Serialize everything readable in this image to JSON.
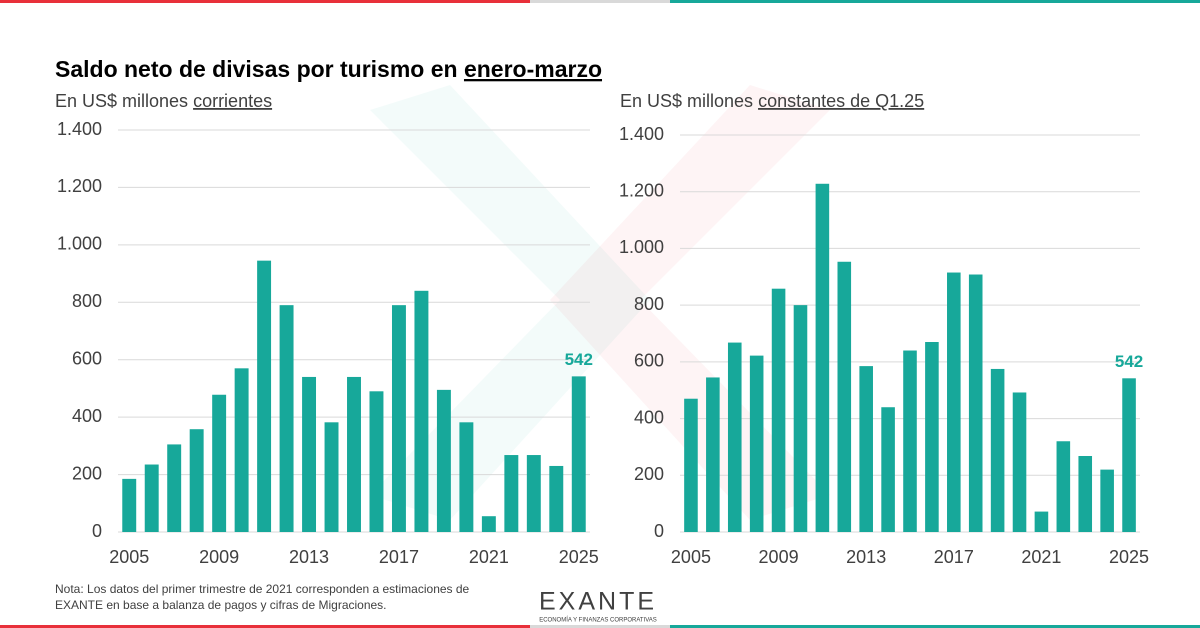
{
  "title": {
    "text": "Saldo neto de divisas por turismo en ",
    "underlined": "enero-marzo"
  },
  "note": [
    "Nota: Los datos del primer trimestre de 2021 corresponden a estimaciones de",
    "EXANTE en base a balanza de pagos y cifras de Migraciones."
  ],
  "logo": {
    "name": "EXANTE",
    "tagline": "ECONOMÍA Y FINANZAS CORPORATIVAS"
  },
  "chart_data": [
    {
      "type": "bar",
      "subtitle": {
        "text": "En US$ millones ",
        "underlined": "corrientes"
      },
      "categories": [
        "2005",
        null,
        null,
        null,
        "2009",
        null,
        null,
        null,
        "2013",
        null,
        null,
        null,
        "2017",
        null,
        null,
        null,
        "2021",
        null,
        null,
        null,
        "2025"
      ],
      "values": [
        185,
        235,
        305,
        358,
        478,
        570,
        945,
        790,
        540,
        382,
        540,
        490,
        790,
        840,
        495,
        382,
        55,
        268,
        268,
        230,
        542
      ],
      "value_labels": [
        null,
        null,
        null,
        null,
        null,
        null,
        null,
        null,
        null,
        null,
        null,
        null,
        null,
        null,
        null,
        null,
        null,
        null,
        null,
        null,
        "542"
      ],
      "color": "#17a89a",
      "ylim": [
        0,
        1400
      ],
      "yticks": [
        0,
        200,
        400,
        600,
        800,
        {
          "value": 1000,
          "label": "1.000"
        },
        {
          "value": 1200,
          "label": "1.200"
        },
        {
          "value": 1400,
          "label": "1.400"
        }
      ],
      "grid": true
    },
    {
      "type": "bar",
      "subtitle": {
        "text": "En US$ millones ",
        "underlined": "constantes de Q1.25"
      },
      "categories": [
        "2005",
        null,
        null,
        null,
        "2009",
        null,
        null,
        null,
        "2013",
        null,
        null,
        null,
        "2017",
        null,
        null,
        null,
        "2021",
        null,
        null,
        null,
        "2025"
      ],
      "values": [
        470,
        545,
        668,
        622,
        858,
        800,
        1228,
        953,
        585,
        440,
        640,
        670,
        915,
        908,
        575,
        492,
        72,
        320,
        268,
        220,
        542
      ],
      "value_labels": [
        null,
        null,
        null,
        null,
        null,
        null,
        null,
        null,
        null,
        null,
        null,
        null,
        null,
        null,
        null,
        null,
        null,
        null,
        null,
        null,
        "542"
      ],
      "color": "#17a89a",
      "ylim": [
        0,
        1400
      ],
      "yticks": [
        0,
        200,
        400,
        600,
        800,
        {
          "value": 1000,
          "label": "1.000"
        },
        {
          "value": 1200,
          "label": "1.200"
        },
        {
          "value": 1400,
          "label": "1.400"
        }
      ],
      "grid": true
    }
  ]
}
